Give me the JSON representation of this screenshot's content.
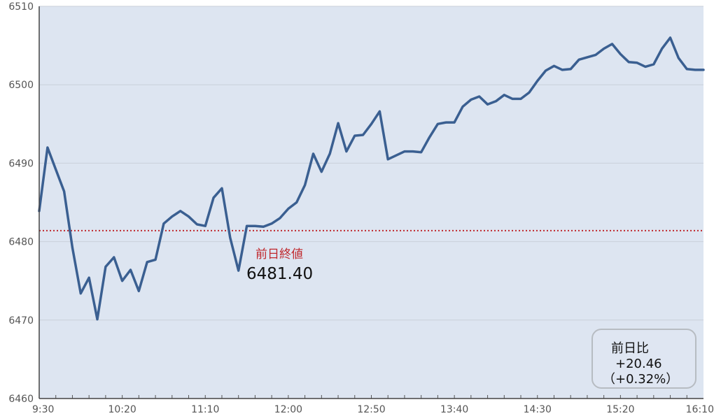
{
  "chart_data": {
    "type": "line",
    "x_ticks": [
      "9:30",
      "10:20",
      "11:10",
      "12:00",
      "12:50",
      "13:40",
      "14:30",
      "15:20",
      "16:10"
    ],
    "y_ticks": [
      "6510",
      "6500",
      "6490",
      "6480",
      "6470",
      "6460"
    ],
    "ylim": [
      6460,
      6510
    ],
    "grid": true,
    "colors": {
      "line": "#3a5f91",
      "plot_bg": "#dde5f1",
      "reference": "#c0282d"
    },
    "reference": {
      "label": "前日終値",
      "value_text": "6481.40",
      "value": 6481.4
    },
    "change": {
      "label": "前日比",
      "value": "+20.46",
      "percent": "（+0.32%）"
    },
    "series": [
      {
        "x": [
          "9:30",
          "9:35",
          "9:40",
          "9:45",
          "9:50",
          "9:55",
          "10:00",
          "10:05",
          "10:10",
          "10:15",
          "10:20",
          "10:25",
          "10:30",
          "10:35",
          "10:40",
          "10:45",
          "10:50",
          "10:55",
          "11:00",
          "11:05",
          "11:10",
          "11:15",
          "11:20",
          "11:25",
          "11:30",
          "11:35",
          "11:40",
          "11:45",
          "11:50",
          "11:55",
          "12:00",
          "12:05",
          "12:10",
          "12:15",
          "12:20",
          "12:25",
          "12:30",
          "12:35",
          "12:40",
          "12:45",
          "12:50",
          "12:55",
          "13:00",
          "13:05",
          "13:10",
          "13:15",
          "13:20",
          "13:25",
          "13:30",
          "13:35",
          "13:40",
          "13:45",
          "13:50",
          "13:55",
          "14:00",
          "14:05",
          "14:10",
          "14:15",
          "14:20",
          "14:25",
          "14:30",
          "14:35",
          "14:40",
          "14:45",
          "14:50",
          "14:55",
          "15:00",
          "15:05",
          "15:10",
          "15:15",
          "15:20",
          "15:25",
          "15:30",
          "15:35",
          "15:40",
          "15:45",
          "15:50",
          "15:55",
          "16:00",
          "16:05",
          "16:10"
        ],
        "values": [
          6483.9,
          6492.0,
          6489.2,
          6486.4,
          6479.2,
          6473.4,
          6475.4,
          6470.1,
          6476.8,
          6478.0,
          6475.0,
          6476.4,
          6473.7,
          6477.4,
          6477.7,
          6482.3,
          6483.2,
          6483.9,
          6483.2,
          6482.2,
          6482.0,
          6485.6,
          6486.8,
          6480.5,
          6476.3,
          6482.0,
          6482.0,
          6481.9,
          6482.3,
          6483.0,
          6484.2,
          6485.0,
          6487.2,
          6491.2,
          6488.9,
          6491.2,
          6495.1,
          6491.5,
          6493.5,
          6493.6,
          6495.0,
          6496.6,
          6490.5,
          6491.0,
          6491.5,
          6491.5,
          6491.4,
          6493.3,
          6495.0,
          6495.2,
          6495.2,
          6497.2,
          6498.1,
          6498.5,
          6497.5,
          6497.9,
          6498.7,
          6498.2,
          6498.2,
          6499.0,
          6500.5,
          6501.8,
          6502.4,
          6501.9,
          6502.0,
          6503.2,
          6503.5,
          6503.8,
          6504.6,
          6505.2,
          6503.9,
          6502.9,
          6502.8,
          6502.3,
          6502.6,
          6504.6,
          6506.0,
          6503.4,
          6502.0,
          6501.9,
          6501.9
        ]
      }
    ]
  }
}
